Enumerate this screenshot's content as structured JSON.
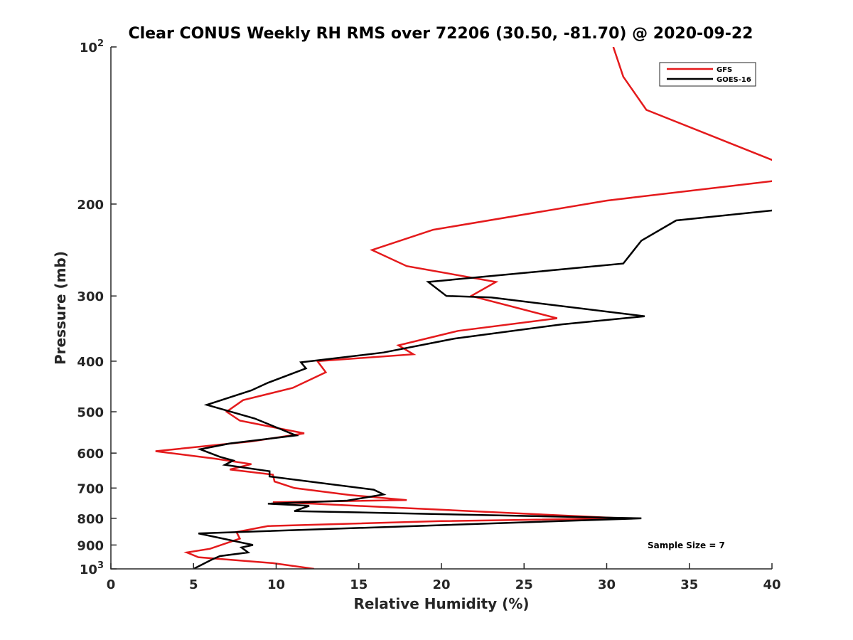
{
  "chart_data": {
    "type": "line",
    "title": "Clear CONUS Weekly RH RMS over 72206 (30.50, -81.70) @ 2020-09-22",
    "xlabel": "Relative Humidity (%)",
    "ylabel": "Pressure (mb)",
    "xlim": [
      0,
      40
    ],
    "ylim": [
      100,
      1000
    ],
    "y_scale": "log",
    "y_reversed": true,
    "grid": false,
    "legend_position": "top-right",
    "x_ticks": [
      0,
      5,
      10,
      15,
      20,
      25,
      30,
      35,
      40
    ],
    "x_tick_labels": [
      "0",
      "5",
      "10",
      "15",
      "20",
      "25",
      "30",
      "35",
      "40"
    ],
    "y_ticks": [
      100,
      200,
      300,
      400,
      500,
      600,
      700,
      800,
      900,
      1000
    ],
    "y_tick_labels": [
      {
        "base": "10",
        "exp": "2"
      },
      {
        "base": "200",
        "exp": ""
      },
      {
        "base": "300",
        "exp": ""
      },
      {
        "base": "400",
        "exp": ""
      },
      {
        "base": "500",
        "exp": ""
      },
      {
        "base": "600",
        "exp": ""
      },
      {
        "base": "700",
        "exp": ""
      },
      {
        "base": "800",
        "exp": ""
      },
      {
        "base": "900",
        "exp": ""
      },
      {
        "base": "10",
        "exp": "3"
      }
    ],
    "annotation": "Sample Size = 7",
    "series": [
      {
        "name": "GFS",
        "color": "#e41a1c",
        "x": [
          30.4,
          31.0,
          32.4,
          40.5,
          null,
          40.5,
          30.0,
          19.5,
          15.8,
          17.9,
          23.3,
          21.8,
          27.0,
          21.0,
          17.4,
          18.3,
          12.5,
          13.0,
          11.0,
          8.0,
          7.0,
          7.8,
          11.7,
          8.5,
          2.7,
          6.3,
          8.5,
          7.2,
          9.8,
          9.9,
          11.1,
          14.5,
          17.9,
          9.8,
          12.2,
          31.0,
          20.0,
          9.5,
          7.6,
          7.8,
          6.0,
          4.6,
          5.3,
          9.8,
          12.3
        ],
        "y": [
          100,
          114,
          132,
          167,
          null,
          180,
          197,
          224,
          245,
          263,
          282,
          300,
          331,
          350,
          373,
          388,
          400,
          420,
          450,
          475,
          500,
          520,
          550,
          570,
          595,
          615,
          630,
          645,
          660,
          680,
          700,
          722,
          738,
          745,
          750,
          800,
          810,
          828,
          850,
          875,
          915,
          930,
          950,
          975,
          1000
        ]
      },
      {
        "name": "GOES-16",
        "color": "#000000",
        "x": [
          40.5,
          34.2,
          32.1,
          31.0,
          19.2,
          20.3,
          23.0,
          32.3,
          27.3,
          20.8,
          16.5,
          11.5,
          11.8,
          9.5,
          8.5,
          5.8,
          8.7,
          11.2,
          7.2,
          5.4,
          6.6,
          7.4,
          6.9,
          9.6,
          9.6,
          15.9,
          16.5,
          14.3,
          9.5,
          12.0,
          11.1,
          32.1,
          5.3,
          8.6,
          7.9,
          8.3,
          6.6,
          6.1,
          5.0
        ],
        "y": [
          205,
          215,
          235,
          260,
          282,
          300,
          302,
          328,
          340,
          362,
          385,
          402,
          413,
          440,
          455,
          485,
          515,
          555,
          575,
          590,
          610,
          620,
          632,
          650,
          665,
          705,
          720,
          740,
          750,
          757,
          775,
          800,
          855,
          900,
          910,
          930,
          945,
          960,
          1000
        ]
      }
    ]
  }
}
